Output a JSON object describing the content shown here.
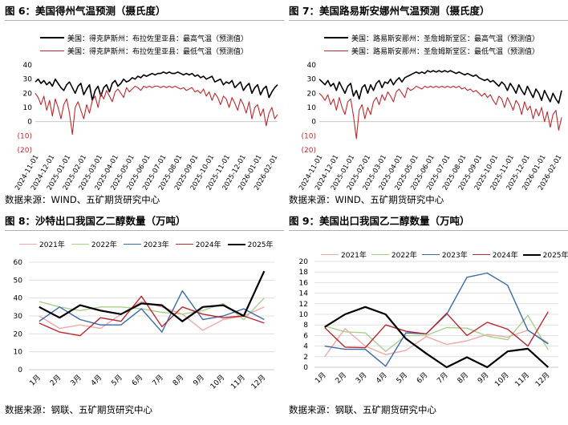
{
  "colors": {
    "black": "#000000",
    "red": "#c0282b",
    "pink": "#f0a8a8",
    "lightgreen": "#a9cf8c",
    "blue": "#3a6aa8",
    "darkred": "#b8292f",
    "axis": "#c8c8c8",
    "grid": "#d9d9d9"
  },
  "panels": {
    "p1": {
      "title": "图 6：美国得州气温预测（摄氏度）",
      "source": "数据来源：WIND、五矿期货研究中心"
    },
    "p2": {
      "title": "图 7：美国路易斯安娜州气温预测（摄氏度）",
      "source": "数据来源：WIND、五矿期货研究中心"
    },
    "p3": {
      "title": "图 8：沙特出口我国乙二醇数量（万吨）",
      "source": "数据来源：钢联、五矿期货研究中心"
    },
    "p4": {
      "title": "图 9：美国出口我国乙二醇数量（万吨）",
      "source": "数据来源：钢联、五矿期货研究中心"
    }
  },
  "chart_data": [
    {
      "id": "texas_temp",
      "type": "line",
      "title": "图 6：美国得州气温预测（摄氏度）",
      "ylim": [
        -20,
        40
      ],
      "yticks": [
        "40",
        "30",
        "20",
        "10",
        "0",
        "(10)",
        "(20)"
      ],
      "x_labels": [
        "2024-11-01",
        "2024-12-01",
        "2025-01-01",
        "2025-02-01",
        "2025-03-01",
        "2025-04-01",
        "2025-05-01",
        "2025-06-01",
        "2025-07-01",
        "2025-08-01",
        "2025-09-01",
        "2025-10-01",
        "2025-11-01",
        "2025-12-01",
        "2026-01-01",
        "2026-02-01"
      ],
      "series": [
        {
          "name": "美国：得克萨斯州：布拉佐里亚县：最高气温（预测值）",
          "color": "#000000",
          "values": [
            28,
            30,
            27,
            29,
            26,
            28,
            25,
            30,
            27,
            24,
            22,
            26,
            28,
            24,
            20,
            25,
            27,
            19,
            23,
            26,
            15,
            22,
            25,
            18,
            24,
            26,
            21,
            27,
            29,
            25,
            27,
            30,
            28,
            29,
            31,
            30,
            32,
            31,
            33,
            32,
            33,
            34,
            33,
            34,
            34,
            35,
            34,
            35,
            34,
            34,
            35,
            34,
            33,
            34,
            33,
            34,
            32,
            33,
            31,
            32,
            30,
            31,
            32,
            28,
            29,
            30,
            26,
            28,
            27,
            29,
            24,
            26,
            28,
            22,
            25,
            27,
            20,
            24,
            26,
            19,
            23,
            25,
            17,
            21,
            24,
            26
          ]
        },
        {
          "name": "美国：得克萨斯州：布拉佐里亚县：最低气温（预测值）",
          "color": "#c0282b",
          "values": [
            20,
            17,
            12,
            18,
            8,
            15,
            4,
            16,
            10,
            2,
            12,
            16,
            6,
            -9,
            10,
            14,
            8,
            2,
            12,
            6,
            15,
            18,
            10,
            20,
            16,
            22,
            18,
            14,
            21,
            23,
            20,
            17,
            24,
            21,
            23,
            25,
            24,
            22,
            25,
            24,
            25,
            24,
            25,
            25,
            24,
            25,
            24,
            25,
            24,
            25,
            24,
            23,
            24,
            22,
            23,
            24,
            21,
            22,
            20,
            23,
            18,
            21,
            15,
            20,
            17,
            12,
            18,
            16,
            10,
            17,
            13,
            8,
            16,
            12,
            6,
            14,
            2,
            10,
            12,
            4,
            9,
            -3,
            6,
            10,
            2,
            5
          ]
        }
      ]
    },
    {
      "id": "louisiana_temp",
      "type": "line",
      "title": "图 7：美国路易斯安娜州气温预测（摄氏度）",
      "ylim": [
        -20,
        40
      ],
      "yticks": [
        "40",
        "30",
        "20",
        "10",
        "0",
        "(10)",
        "(20)"
      ],
      "x_labels": [
        "2024-11-01",
        "2024-12-01",
        "2025-01-01",
        "2025-02-01",
        "2025-03-01",
        "2025-04-01",
        "2025-05-01",
        "2025-06-01",
        "2025-07-01",
        "2025-08-01",
        "2025-09-01",
        "2025-10-01",
        "2025-11-01",
        "2025-12-01",
        "2026-01-01",
        "2026-02-01"
      ],
      "series": [
        {
          "name": "美国：路易斯安那州：圣詹姆斯堂区：最高气温（预测值）",
          "color": "#000000",
          "values": [
            30,
            28,
            26,
            29,
            25,
            27,
            22,
            28,
            24,
            20,
            25,
            27,
            18,
            22,
            16,
            24,
            26,
            20,
            26,
            22,
            27,
            29,
            24,
            28,
            27,
            30,
            26,
            29,
            31,
            28,
            31,
            32,
            33,
            34,
            35,
            34,
            35,
            34,
            36,
            35,
            36,
            35,
            36,
            35,
            36,
            35,
            36,
            35,
            34,
            35,
            34,
            33,
            34,
            33,
            32,
            33,
            31,
            30,
            29,
            30,
            28,
            29,
            27,
            25,
            28,
            26,
            22,
            27,
            24,
            20,
            26,
            22,
            19,
            25,
            21,
            17,
            23,
            20,
            15,
            22,
            18,
            14,
            20,
            16,
            13,
            22
          ]
        },
        {
          "name": "美国：路易斯安那州：圣詹姆斯堂区：最低气温（预测值）",
          "color": "#c0282b",
          "values": [
            20,
            18,
            15,
            19,
            12,
            16,
            8,
            17,
            10,
            5,
            14,
            16,
            4,
            -12,
            8,
            12,
            2,
            10,
            5,
            14,
            17,
            12,
            19,
            15,
            21,
            18,
            14,
            21,
            23,
            20,
            17,
            24,
            22,
            23,
            25,
            24,
            23,
            25,
            24,
            25,
            24,
            25,
            24,
            25,
            24,
            25,
            24,
            25,
            24,
            25,
            23,
            24,
            22,
            23,
            21,
            22,
            20,
            18,
            20,
            17,
            19,
            15,
            12,
            18,
            16,
            10,
            17,
            13,
            8,
            15,
            12,
            5,
            14,
            8,
            11,
            2,
            9,
            4,
            10,
            0,
            7,
            -4,
            5,
            8,
            -6,
            3
          ]
        }
      ]
    },
    {
      "id": "saudi_meg",
      "type": "line",
      "title": "图 8：沙特出口我国乙二醇数量（万吨）",
      "ylim": [
        0,
        60
      ],
      "yticks": [
        "0",
        "10",
        "20",
        "30",
        "40",
        "50",
        "60"
      ],
      "categories": [
        "1月",
        "2月",
        "3月",
        "4月",
        "5月",
        "6月",
        "7月",
        "8月",
        "9月",
        "10月",
        "11月",
        "12月"
      ],
      "series": [
        {
          "name": "2021年",
          "color": "#f0a8a8",
          "values": [
            30,
            23,
            25,
            23,
            31,
            38,
            35,
            31,
            22,
            28,
            30,
            35
          ]
        },
        {
          "name": "2022年",
          "color": "#a9cf8c",
          "values": [
            38,
            35,
            33,
            35,
            35,
            34,
            32,
            31,
            33,
            37,
            28,
            40
          ]
        },
        {
          "name": "2023年",
          "color": "#3a6aa8",
          "values": [
            27,
            35,
            28,
            25,
            25,
            34,
            21,
            44,
            28,
            30,
            34,
            28
          ]
        },
        {
          "name": "2024年",
          "color": "#b8292f",
          "values": [
            26,
            21,
            19,
            29,
            27,
            41,
            24,
            35,
            31,
            29,
            30,
            26
          ]
        },
        {
          "name": "2025年",
          "color": "#000000",
          "values": [
            35,
            29,
            36,
            33,
            31,
            37,
            36,
            27,
            35,
            36,
            30,
            55
          ]
        }
      ]
    },
    {
      "id": "us_meg",
      "type": "line",
      "title": "图 9：美国出口我国乙二醇数量（万吨）",
      "ylim": [
        0,
        20
      ],
      "yticks": [
        "0",
        "2",
        "4",
        "6",
        "8",
        "10",
        "12",
        "14",
        "16",
        "18",
        "20"
      ],
      "categories": [
        "1月",
        "2月",
        "3月",
        "4月",
        "5月",
        "6月",
        "7月",
        "8月",
        "9月",
        "10月",
        "11月",
        "12月"
      ],
      "series": [
        {
          "name": "2021年",
          "color": "#f0a8a8",
          "values": [
            2.0,
            7.3,
            4.0,
            2.4,
            3.2,
            5.8,
            4.3,
            5.0,
            6.2,
            5.7,
            7.0,
            4.6
          ]
        },
        {
          "name": "2022年",
          "color": "#a9cf8c",
          "values": [
            7.8,
            6.7,
            6.5,
            3.0,
            6.0,
            6.0,
            7.5,
            7.4,
            5.9,
            5.2,
            9.8,
            3.3
          ]
        },
        {
          "name": "2023年",
          "color": "#3a6aa8",
          "values": [
            4.0,
            3.4,
            3.4,
            0.2,
            6.5,
            6.3,
            10.0,
            17.0,
            17.8,
            15.5,
            7.0,
            4.4
          ]
        },
        {
          "name": "2024年",
          "color": "#b8292f",
          "values": [
            7.5,
            3.8,
            3.7,
            8.0,
            6.8,
            6.3,
            10.2,
            6.0,
            8.5,
            7.2,
            4.0,
            10.5
          ]
        },
        {
          "name": "2025年",
          "color": "#000000",
          "values": [
            7.6,
            10.0,
            11.4,
            10.0,
            5.4,
            2.6,
            0.0,
            1.9,
            0.0,
            3.0,
            3.5,
            0.0
          ]
        }
      ]
    }
  ]
}
